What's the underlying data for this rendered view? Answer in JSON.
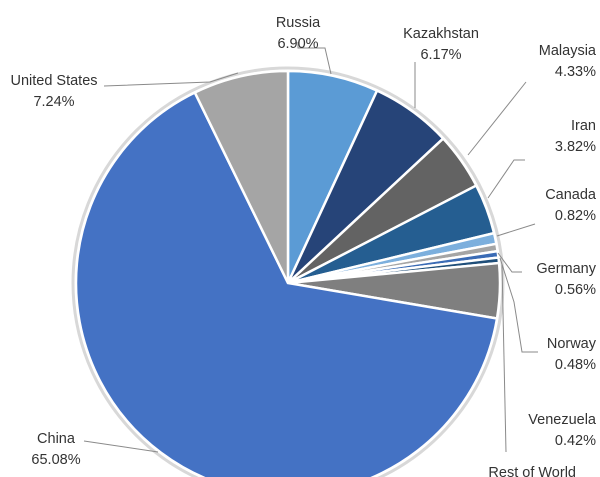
{
  "chart_data": {
    "type": "pie",
    "title": "",
    "start_angle_deg": 0,
    "direction": "clockwise",
    "slices": [
      {
        "label": "Russia",
        "value": 6.9,
        "value_label": "6.90%",
        "color": "#5b9bd5"
      },
      {
        "label": "Kazakhstan",
        "value": 6.17,
        "value_label": "6.17%",
        "color": "#264478"
      },
      {
        "label": "Malaysia",
        "value": 4.33,
        "value_label": "4.33%",
        "color": "#636363"
      },
      {
        "label": "Iran",
        "value": 3.82,
        "value_label": "3.82%",
        "color": "#255e91"
      },
      {
        "label": "Canada",
        "value": 0.82,
        "value_label": "0.82%",
        "color": "#7cafdd"
      },
      {
        "label": "Germany",
        "value": 0.56,
        "value_label": "0.56%",
        "color": "#a5a5a5"
      },
      {
        "label": "Norway",
        "value": 0.48,
        "value_label": "0.48%",
        "color": "#3a6bb5"
      },
      {
        "label": "Venezuela",
        "value": 0.42,
        "value_label": "0.42%",
        "color": "#1f4e79"
      },
      {
        "label": "Rest of World",
        "value": 4.18,
        "value_label": "",
        "color": "#7f7f7f"
      },
      {
        "label": "China",
        "value": 65.08,
        "value_label": "65.08%",
        "color": "#4472c4"
      },
      {
        "label": "United States",
        "value": 7.24,
        "value_label": "7.24%",
        "color": "#a5a5a5"
      }
    ]
  }
}
